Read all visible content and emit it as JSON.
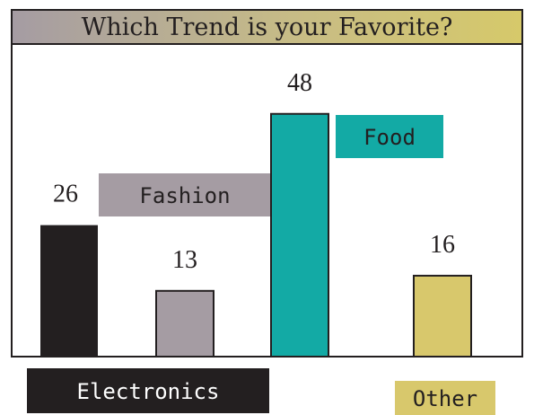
{
  "chart_data": {
    "type": "bar",
    "title": "Which Trend is your Favorite?",
    "categories": [
      "Electronics",
      "Fashion",
      "Food",
      "Other"
    ],
    "values": [
      26,
      13,
      48,
      16
    ],
    "colors": [
      "#231f20",
      "#a59ca3",
      "#13aaa5",
      "#d8c86c"
    ],
    "value_labels": [
      "26",
      "13",
      "48",
      "16"
    ],
    "ylim": [
      0,
      56
    ]
  }
}
